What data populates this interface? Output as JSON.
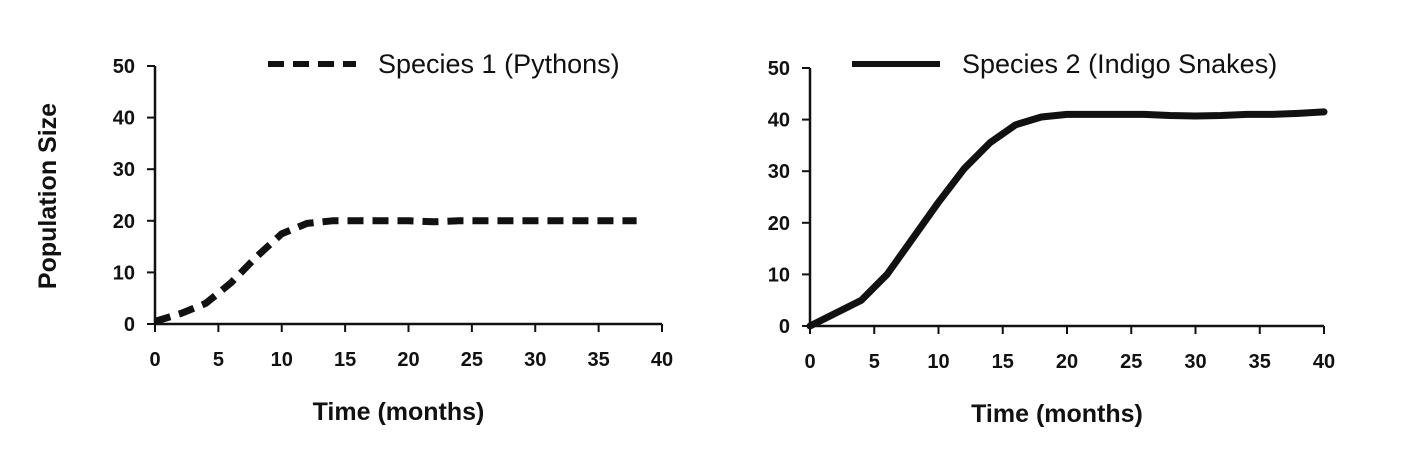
{
  "ylabel": "Population Size",
  "chart_data": [
    {
      "type": "line",
      "xlabel": "Time (months)",
      "ylabel": "Population Size",
      "xlim": [
        0,
        40
      ],
      "ylim": [
        0,
        50
      ],
      "xticks": [
        "0",
        "5",
        "10",
        "15",
        "20",
        "25",
        "30",
        "35",
        "40"
      ],
      "yticks": [
        "0",
        "10",
        "20",
        "30",
        "40",
        "50"
      ],
      "grid": false,
      "legend_position": "top",
      "series": [
        {
          "name": "Species 1 (Pythons)",
          "style": "dashed",
          "color": "#111111",
          "x": [
            0,
            2,
            4,
            6,
            8,
            10,
            12,
            14,
            16,
            18,
            20,
            22,
            24,
            26,
            28,
            30,
            32,
            34,
            36,
            38
          ],
          "y": [
            0.5,
            2,
            4,
            8,
            13,
            17.5,
            19.5,
            20,
            20,
            20,
            20,
            19.8,
            20,
            20,
            20,
            20,
            20,
            20,
            20,
            20
          ]
        }
      ]
    },
    {
      "type": "line",
      "xlabel": "Time (months)",
      "ylabel": "",
      "xlim": [
        0,
        40
      ],
      "ylim": [
        0,
        50
      ],
      "xticks": [
        "0",
        "5",
        "10",
        "15",
        "20",
        "25",
        "30",
        "35",
        "40"
      ],
      "yticks": [
        "0",
        "10",
        "20",
        "30",
        "40",
        "50"
      ],
      "grid": false,
      "legend_position": "top",
      "series": [
        {
          "name": "Species 2 (Indigo Snakes)",
          "style": "solid",
          "color": "#111111",
          "x": [
            0,
            2,
            4,
            6,
            8,
            10,
            12,
            14,
            16,
            18,
            20,
            22,
            24,
            26,
            28,
            30,
            32,
            34,
            36,
            38,
            40
          ],
          "y": [
            0,
            2.5,
            5,
            10,
            17,
            24,
            30.5,
            35.5,
            39,
            40.5,
            41,
            41,
            41,
            41,
            40.8,
            40.7,
            40.8,
            41,
            41,
            41.2,
            41.5
          ]
        }
      ]
    }
  ]
}
